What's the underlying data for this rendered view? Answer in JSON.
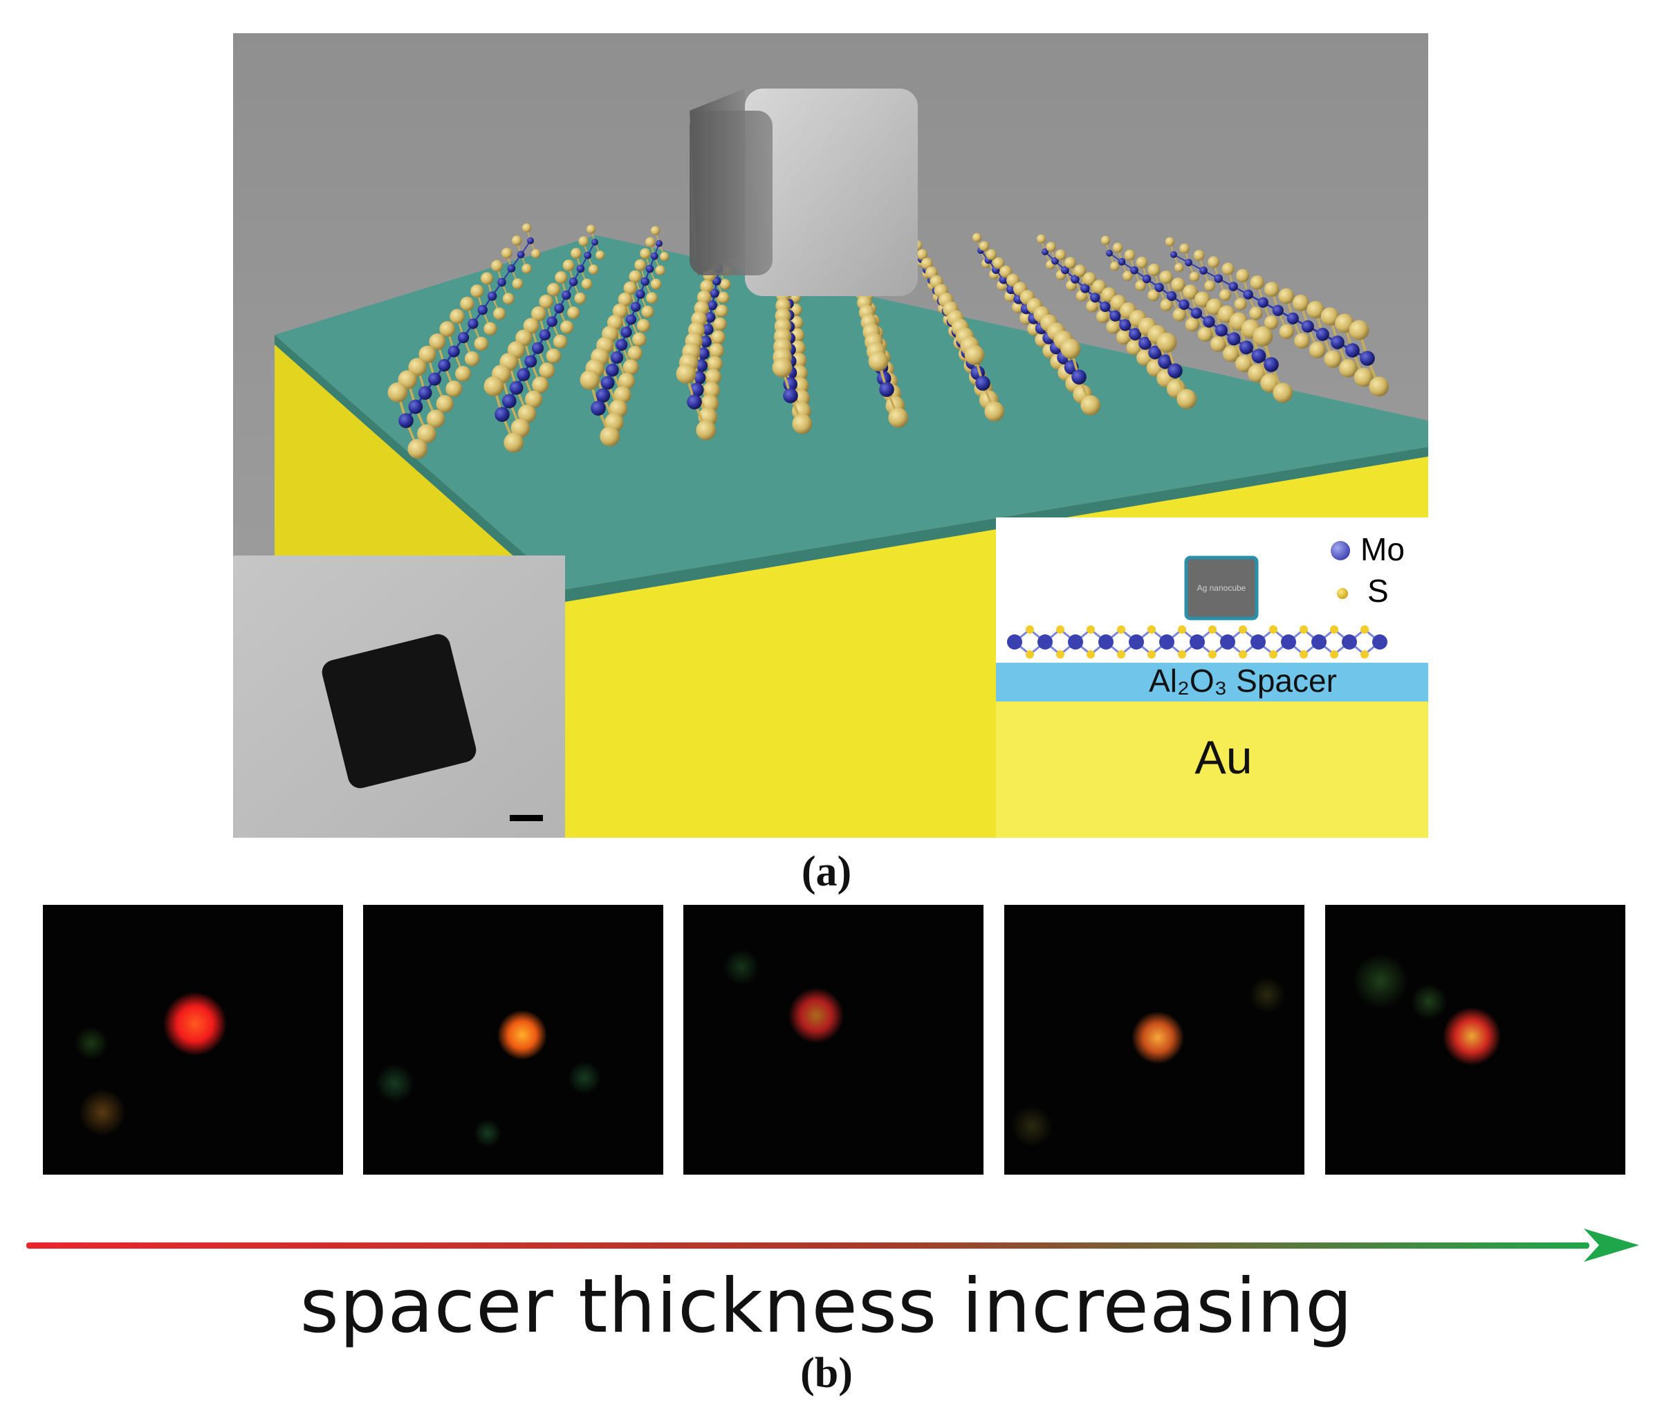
{
  "figure": {
    "panel_a": {
      "label": "(a)",
      "schematic": {
        "legend_mo": "Mo",
        "legend_s": "S",
        "nanocube_label": "Ag nanocube",
        "spacer_label": "Al₂O₃ Spacer",
        "substrate_label": "Au"
      },
      "colors": {
        "mo_atom": "#2b2f9a",
        "s_atom": "#d8bf6e",
        "spacer": "#4e9a8e",
        "gold": "#ffee36",
        "background": "#949494"
      }
    },
    "panel_b": {
      "label": "(b)",
      "axis_text": "spacer thickness increasing",
      "arrow_start_color": "#e8262c",
      "arrow_end_color": "#1fa64a",
      "tile_count": 5
    }
  }
}
